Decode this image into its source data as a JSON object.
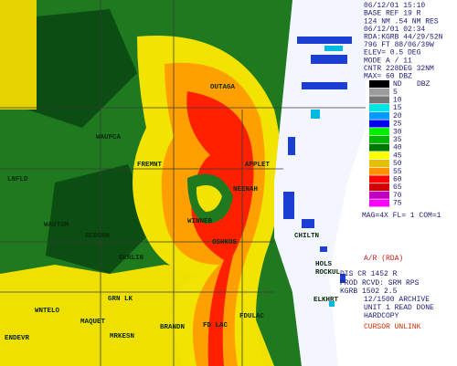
{
  "header": {
    "lines": [
      "06/12/01 15:10",
      "BASE REF   19 R",
      "124 NM  .54 NM RES",
      "06/12/01 02:34",
      "RDA:KGRB 44/29/52N",
      "796 FT  88/06/39W",
      "ELEV= 0.5 DEG",
      "MODE A /  11",
      "CNTR 228DEG  32NM",
      "MAX= 60 DBZ"
    ]
  },
  "legend": {
    "title": "DBZ",
    "entries": [
      {
        "label": "ND",
        "color": "#000000"
      },
      {
        "label": "5",
        "color": "#9c9c9c"
      },
      {
        "label": "10",
        "color": "#767676"
      },
      {
        "label": "15",
        "color": "#00e4e4"
      },
      {
        "label": "20",
        "color": "#009aff"
      },
      {
        "label": "25",
        "color": "#0000ef"
      },
      {
        "label": "30",
        "color": "#00f000"
      },
      {
        "label": "35",
        "color": "#00b800"
      },
      {
        "label": "40",
        "color": "#007800"
      },
      {
        "label": "45",
        "color": "#ffff00"
      },
      {
        "label": "50",
        "color": "#e7c000"
      },
      {
        "label": "55",
        "color": "#ff9000"
      },
      {
        "label": "60",
        "color": "#ff0000"
      },
      {
        "label": "65",
        "color": "#d40000"
      },
      {
        "label": "70",
        "color": "#c000c0"
      },
      {
        "label": "75",
        "color": "#ff00ff"
      }
    ]
  },
  "settings": {
    "line": "MAG=4X FL= 1 COM=1"
  },
  "status": {
    "lines": [
      "A/R (RDA)",
      "DIS CR   1452  R",
      "PROD RCVD: SRM RPS",
      "KGRB 1502   2.5",
      "12/1500 ARCHIVE",
      "UNIT 1 READ DONE",
      "HARDCOPY",
      "CURSOR UNLINK"
    ]
  },
  "map": {
    "labels": [
      "OUTAGA",
      "APPLET",
      "FREMNT",
      "NEENAH",
      "WINNEB",
      "OSHKOS",
      "BERLIN",
      "GRN LK",
      "FD LAC",
      "FDULAC",
      "BRANDN",
      "MRKESN",
      "MAQUET",
      "ENDEVR",
      "WNTELO",
      "WAUTOM",
      "REDGRN",
      "LNFLD",
      "WAUPCA",
      "CHILTN",
      "HOLS",
      "ROCKUL",
      "ELKHRT"
    ]
  }
}
